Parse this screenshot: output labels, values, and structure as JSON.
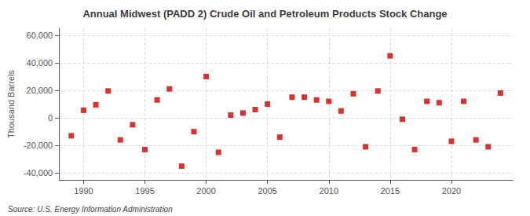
{
  "chart_data": {
    "type": "scatter",
    "title": "Annual Midwest (PADD 2) Crude Oil and Petroleum Products Stock Change",
    "ylabel": "Thousand Barrels",
    "annotations": [
      "Source: U.S. Energy Information Administration"
    ],
    "color": "#cc0000",
    "marker": "square",
    "grid": true,
    "xlim": [
      1988,
      2025
    ],
    "ylim": [
      -45000,
      65000
    ],
    "xticks": [
      1990,
      1995,
      2000,
      2005,
      2010,
      2015,
      2020
    ],
    "yticks": [
      {
        "value": -40000,
        "label": "-40,000"
      },
      {
        "value": -20000,
        "label": "-20,000"
      },
      0,
      {
        "value": 20000,
        "label": "20,000"
      },
      {
        "value": 40000,
        "label": "40,000"
      },
      {
        "value": 60000,
        "label": "60,000"
      }
    ],
    "x": [
      1989,
      1990,
      1991,
      1992,
      1993,
      1994,
      1995,
      1996,
      1997,
      1998,
      1999,
      2000,
      2001,
      2002,
      2003,
      2004,
      2005,
      2006,
      2007,
      2008,
      2009,
      2010,
      2011,
      2012,
      2013,
      2014,
      2015,
      2016,
      2017,
      2018,
      2019,
      2020,
      2021,
      2022,
      2023,
      2024
    ],
    "values": [
      -13000,
      5500,
      9500,
      19500,
      -16000,
      -5000,
      -23000,
      13000,
      21000,
      -35000,
      -10000,
      30000,
      -25000,
      2000,
      3500,
      6000,
      10000,
      -14000,
      15000,
      15000,
      13000,
      12000,
      5000,
      17500,
      -21000,
      19500,
      45000,
      -1000,
      -23000,
      12000,
      11000,
      -17000,
      12000,
      -16000,
      -21000,
      18000
    ]
  }
}
